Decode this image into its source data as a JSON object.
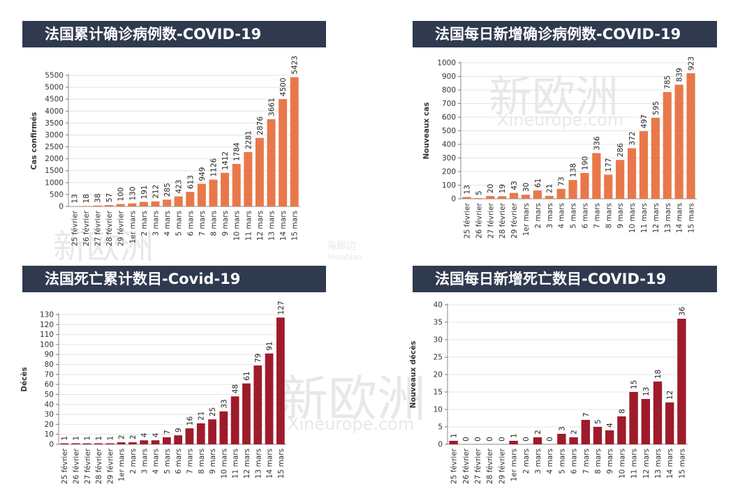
{
  "watermarks": {
    "brand_cn": "新欧洲",
    "brand_en": "Xineurope.com",
    "hina_cn": "海那边",
    "hina_en": "Hinabian"
  },
  "chart_data": [
    {
      "id": "cumulative-cases",
      "type": "bar",
      "title": "法国累计确诊病例数-COVID-19",
      "ylabel": "Cas confirmés",
      "xlabel": "",
      "ylim": [
        0,
        5500
      ],
      "yticks": [
        0,
        500,
        1000,
        1500,
        2000,
        2500,
        3000,
        3500,
        4000,
        4500,
        5000,
        5500
      ],
      "color": "#e8784a",
      "categories": [
        "25 février",
        "26 février",
        "27 février",
        "28 février",
        "29 février",
        "1er mars",
        "2 mars",
        "3 mars",
        "4 mars",
        "5 mars",
        "6 mars",
        "7 mars",
        "8 mars",
        "9 mars",
        "10 mars",
        "11 mars",
        "12 mars",
        "13 mars",
        "14 mars",
        "15 mars"
      ],
      "values": [
        13,
        18,
        38,
        57,
        100,
        130,
        191,
        212,
        285,
        423,
        613,
        949,
        1126,
        1412,
        1784,
        2281,
        2876,
        3661,
        4500,
        5423
      ]
    },
    {
      "id": "daily-cases",
      "type": "bar",
      "title": "法国每日新增确诊病例数-COVID-19",
      "ylabel": "Nouveaux cas",
      "xlabel": "",
      "ylim": [
        0,
        1000
      ],
      "yticks": [
        0,
        100,
        200,
        300,
        400,
        500,
        600,
        700,
        800,
        900,
        1000
      ],
      "color": "#e8784a",
      "categories": [
        "25 février",
        "26 février",
        "27 février",
        "28 février",
        "29 février",
        "1er mars",
        "2 mars",
        "3 mars",
        "4 mars",
        "5 mars",
        "6 mars",
        "7 mars",
        "8 mars",
        "9 mars",
        "10 mars",
        "11 mars",
        "12 mars",
        "13 mars",
        "14 mars",
        "15 mars"
      ],
      "values": [
        13,
        5,
        20,
        19,
        43,
        30,
        61,
        21,
        73,
        138,
        190,
        336,
        177,
        286,
        372,
        497,
        595,
        785,
        839,
        923
      ]
    },
    {
      "id": "cumulative-deaths",
      "type": "bar",
      "title": "法国死亡累计数目-Covid-19",
      "ylabel": "Décès",
      "xlabel": "",
      "ylim": [
        0,
        130
      ],
      "yticks": [
        0,
        10,
        20,
        30,
        40,
        50,
        60,
        70,
        80,
        90,
        100,
        110,
        120,
        130
      ],
      "color": "#9e1b2b",
      "categories": [
        "25 février",
        "26 février",
        "27 février",
        "28 février",
        "29 février",
        "1er mars",
        "2 mars",
        "3 mars",
        "4 mars",
        "5 mars",
        "6 mars",
        "7 mars",
        "8 mars",
        "9 mars",
        "10 mars",
        "11 mars",
        "12 mars",
        "13 mars",
        "14 mars",
        "15 mars"
      ],
      "values": [
        1,
        1,
        1,
        1,
        1,
        2,
        2,
        4,
        4,
        7,
        9,
        16,
        21,
        25,
        33,
        48,
        61,
        79,
        91,
        127
      ]
    },
    {
      "id": "daily-deaths",
      "type": "bar",
      "title": "法国每日新增死亡数目-COVID-19",
      "ylabel": "Nouveaux décès",
      "xlabel": "",
      "ylim": [
        0,
        40
      ],
      "yticks": [
        0,
        5,
        10,
        15,
        20,
        25,
        30,
        35,
        40
      ],
      "color": "#9e1b2b",
      "categories": [
        "25 février",
        "26 février",
        "27 février",
        "28 février",
        "29 février",
        "1er mars",
        "2 mars",
        "3 mars",
        "4 mars",
        "5 mars",
        "6 mars",
        "7 mars",
        "8 mars",
        "9 mars",
        "10 mars",
        "11 mars",
        "12 mars",
        "13 mars",
        "14 mars",
        "15 mars"
      ],
      "values": [
        1,
        0,
        0,
        0,
        0,
        1,
        0,
        2,
        0,
        3,
        2,
        7,
        5,
        4,
        8,
        15,
        13,
        18,
        12,
        36
      ]
    }
  ]
}
